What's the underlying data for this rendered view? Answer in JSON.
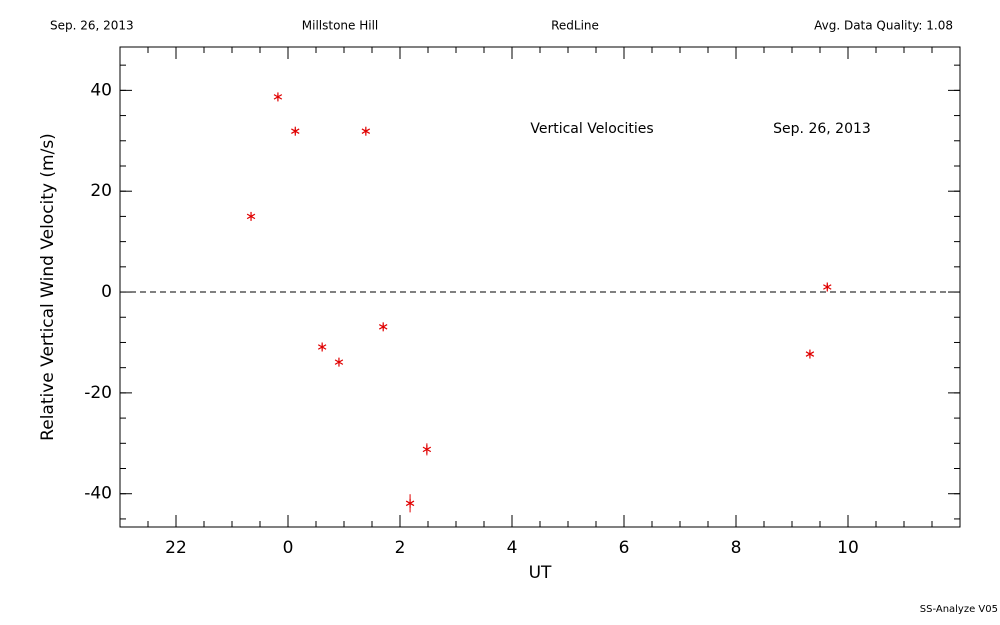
{
  "chart_data": {
    "type": "scatter",
    "header": [
      "Sep. 26, 2013",
      "Millstone Hill",
      "RedLine",
      "Avg. Data Quality: 1.08"
    ],
    "annotations": [
      "Vertical Velocities",
      "Sep. 26, 2013"
    ],
    "footer": "SS-Analyze V05",
    "x_label": "UT",
    "y_label": "Relative Vertical Wind Velocity (m/s)",
    "series": [
      {
        "color": "#e00000",
        "x": [
          -0.66,
          -0.18,
          0.13,
          1.39,
          0.61,
          0.91,
          1.7,
          2.18,
          2.48,
          9.32,
          9.63
        ],
        "values": [
          15,
          38.7,
          31.9,
          31.9,
          -10.9,
          -13.9,
          -6.9,
          -41.9,
          -31.2,
          -12.3,
          1
        ],
        "errors": [
          0.5,
          0.5,
          0.5,
          0.5,
          0.5,
          0.5,
          0.5,
          1.8,
          1.2,
          0.5,
          0.5
        ]
      }
    ],
    "hline": 0,
    "xlim": [
      -3,
      12
    ],
    "xticks": [
      {
        "value": -2,
        "label": "22"
      },
      0,
      2,
      4,
      6,
      8,
      10
    ],
    "ylim": [
      -46.6,
      48.6
    ],
    "yticks": [
      -40,
      -20,
      0,
      20,
      40
    ]
  }
}
